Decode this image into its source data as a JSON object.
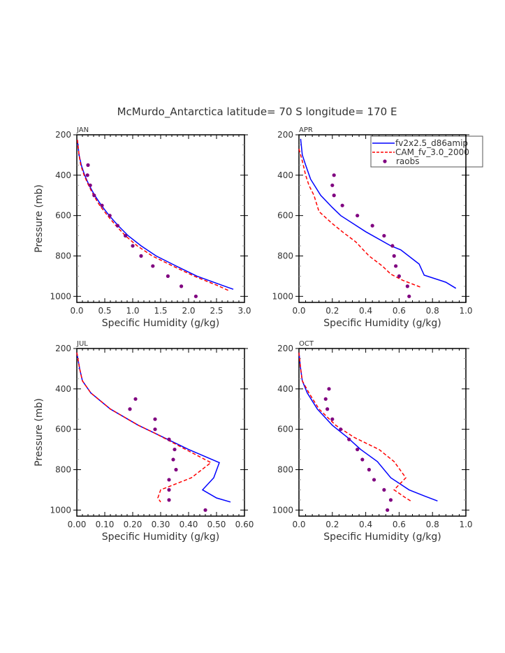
{
  "chart_data": {
    "title": "McMurdo_Antarctica  latitude= 70 S longitude= 170 E",
    "type": "line",
    "legend": {
      "placement": "top-right (APR panel)",
      "entries": [
        {
          "name": "fv2x2.5_d86amip",
          "style": "solid",
          "color": "#0000ff"
        },
        {
          "name": "CAM_fv_3.0_2000",
          "style": "dashed",
          "color": "#ff0000"
        },
        {
          "name": "raobs",
          "style": "marker",
          "color": "#800080"
        }
      ]
    },
    "colors": {
      "model1": "#0000ff",
      "model2": "#ff0000",
      "obs": "#800080",
      "axis": "#000000",
      "text": "#333333"
    },
    "panels": [
      {
        "label": "JAN",
        "xlabel": "Specific Humidity (g/kg)",
        "ylabel": "Pressure (mb)",
        "xlim": [
          0,
          3.0
        ],
        "ylim": [
          200,
          1030
        ],
        "xticks": [
          "0.0",
          "0.5",
          "1.0",
          "1.5",
          "2.0",
          "2.5",
          "3.0"
        ],
        "xtick_values": [
          0,
          0.5,
          1.0,
          1.5,
          2.0,
          2.5,
          3.0
        ],
        "yticks": [
          "200",
          "400",
          "600",
          "800",
          "1000"
        ],
        "ytick_values": [
          200,
          400,
          600,
          800,
          1000
        ],
        "series": [
          {
            "name": "fv2x2.5_d86amip",
            "pressure": [
              225,
              300,
              350,
              400,
              450,
              500,
              550,
              600,
              650,
              700,
              750,
              800,
              850,
              900,
              950,
              965
            ],
            "values": [
              0.01,
              0.04,
              0.08,
              0.14,
              0.22,
              0.32,
              0.44,
              0.58,
              0.74,
              0.92,
              1.15,
              1.42,
              1.78,
              2.15,
              2.65,
              2.8
            ]
          },
          {
            "name": "CAM_fv_3.0_2000",
            "pressure": [
              225,
              300,
              350,
              400,
              450,
              500,
              550,
              600,
              650,
              700,
              750,
              800,
              850,
              900,
              950,
              972
            ],
            "values": [
              0.01,
              0.04,
              0.07,
              0.13,
              0.21,
              0.3,
              0.41,
              0.55,
              0.7,
              0.87,
              1.08,
              1.35,
              1.72,
              2.1,
              2.55,
              2.72
            ]
          },
          {
            "name": "raobs",
            "pressure": [
              350,
              400,
              450,
              500,
              550,
              600,
              650,
              700,
              750,
              800,
              850,
              900,
              950,
              1000
            ],
            "values": [
              0.2,
              0.19,
              0.24,
              0.31,
              0.45,
              0.59,
              0.73,
              0.87,
              1.0,
              1.15,
              1.36,
              1.63,
              1.87,
              2.13
            ]
          }
        ]
      },
      {
        "label": "APR",
        "xlabel": "Specific Humidity (g/kg)",
        "ylabel": "",
        "xlim": [
          0,
          1.0
        ],
        "ylim": [
          200,
          1030
        ],
        "xticks": [
          "0.0",
          "0.2",
          "0.4",
          "0.6",
          "0.8",
          "1.0"
        ],
        "xtick_values": [
          0,
          0.2,
          0.4,
          0.6,
          0.8,
          1.0
        ],
        "yticks": [
          "200",
          "400",
          "600",
          "800",
          "1000"
        ],
        "ytick_values": [
          200,
          400,
          600,
          800,
          1000
        ],
        "series": [
          {
            "name": "fv2x2.5_d86amip",
            "pressure": [
              220,
              300,
              350,
              420,
              500,
              560,
              600,
              680,
              750,
              770,
              840,
              895,
              930,
              960
            ],
            "values": [
              0.01,
              0.02,
              0.04,
              0.07,
              0.13,
              0.2,
              0.25,
              0.4,
              0.55,
              0.61,
              0.72,
              0.75,
              0.88,
              0.94
            ]
          },
          {
            "name": "CAM_fv_3.0_2000",
            "pressure": [
              270,
              330,
              400,
              450,
              500,
              580,
              640,
              680,
              730,
              800,
              850,
              890,
              920,
              955
            ],
            "values": [
              0.0,
              0.02,
              0.04,
              0.06,
              0.09,
              0.12,
              0.2,
              0.26,
              0.34,
              0.42,
              0.5,
              0.55,
              0.62,
              0.73
            ]
          },
          {
            "name": "raobs",
            "pressure": [
              400,
              450,
              500,
              550,
              600,
              650,
              700,
              750,
              800,
              850,
              900,
              950,
              1000
            ],
            "values": [
              0.21,
              0.2,
              0.21,
              0.26,
              0.35,
              0.44,
              0.51,
              0.56,
              0.57,
              0.58,
              0.6,
              0.65,
              0.66
            ]
          }
        ]
      },
      {
        "label": "JUL",
        "xlabel": "Specific Humidity (g/kg)",
        "ylabel": "Pressure (mb)",
        "xlim": [
          0,
          0.6
        ],
        "ylim": [
          200,
          1030
        ],
        "xticks": [
          "0.00",
          "0.10",
          "0.20",
          "0.30",
          "0.40",
          "0.50",
          "0.60"
        ],
        "xtick_values": [
          0,
          0.1,
          0.2,
          0.3,
          0.4,
          0.5,
          0.6
        ],
        "yticks": [
          "200",
          "400",
          "600",
          "800",
          "1000"
        ],
        "ytick_values": [
          200,
          400,
          600,
          800,
          1000
        ],
        "series": [
          {
            "name": "fv2x2.5_d86amip",
            "pressure": [
              220,
              300,
              360,
              420,
              500,
              580,
              620,
              700,
              765,
              840,
              900,
              940,
              960
            ],
            "values": [
              0.0,
              0.01,
              0.02,
              0.05,
              0.12,
              0.22,
              0.28,
              0.4,
              0.51,
              0.49,
              0.45,
              0.5,
              0.55
            ]
          },
          {
            "name": "CAM_fv_3.0_2000",
            "pressure": [
              220,
              300,
              360,
              420,
              500,
              580,
              620,
              700,
              765,
              840,
              900,
              940,
              960
            ],
            "values": [
              0.0,
              0.01,
              0.02,
              0.05,
              0.12,
              0.22,
              0.28,
              0.39,
              0.48,
              0.41,
              0.3,
              0.29,
              0.3
            ]
          },
          {
            "name": "raobs",
            "pressure": [
              450,
              500,
              550,
              600,
              650,
              700,
              750,
              800,
              850,
              900,
              950,
              1000
            ],
            "values": [
              0.21,
              0.19,
              0.28,
              0.28,
              0.33,
              0.35,
              0.345,
              0.355,
              0.33,
              0.33,
              0.33,
              0.46
            ]
          }
        ]
      },
      {
        "label": "OCT",
        "xlabel": "Specific Humidity (g/kg)",
        "ylabel": "",
        "xlim": [
          0,
          1.0
        ],
        "ylim": [
          200,
          1030
        ],
        "xticks": [
          "0.0",
          "0.2",
          "0.4",
          "0.6",
          "0.8",
          "1.0"
        ],
        "xtick_values": [
          0,
          0.2,
          0.4,
          0.6,
          0.8,
          1.0
        ],
        "yticks": [
          "200",
          "400",
          "600",
          "800",
          "1000"
        ],
        "ytick_values": [
          200,
          400,
          600,
          800,
          1000
        ],
        "series": [
          {
            "name": "fv2x2.5_d86amip",
            "pressure": [
              220,
              300,
              360,
              420,
              500,
              580,
              640,
              700,
              760,
              840,
              900,
              930,
              955
            ],
            "values": [
              0.0,
              0.01,
              0.02,
              0.05,
              0.11,
              0.2,
              0.29,
              0.37,
              0.47,
              0.55,
              0.66,
              0.75,
              0.83
            ]
          },
          {
            "name": "CAM_fv_3.0_2000",
            "pressure": [
              220,
              300,
              360,
              420,
              500,
              580,
              640,
              700,
              760,
              840,
              900,
              940,
              955
            ],
            "values": [
              0.0,
              0.01,
              0.02,
              0.06,
              0.12,
              0.22,
              0.33,
              0.48,
              0.57,
              0.64,
              0.57,
              0.64,
              0.67
            ]
          },
          {
            "name": "raobs",
            "pressure": [
              400,
              450,
              500,
              550,
              600,
              650,
              700,
              750,
              800,
              850,
              900,
              950,
              1000
            ],
            "values": [
              0.18,
              0.16,
              0.17,
              0.2,
              0.25,
              0.3,
              0.35,
              0.38,
              0.42,
              0.45,
              0.51,
              0.55,
              0.53
            ]
          }
        ]
      }
    ]
  }
}
